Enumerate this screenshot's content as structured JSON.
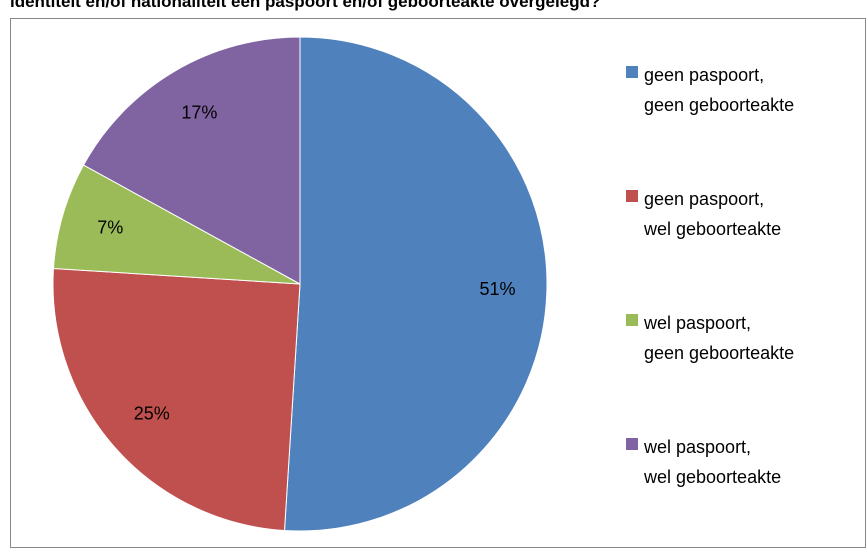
{
  "chart_data": {
    "type": "pie",
    "title": "identiteit en/of nationaliteit een paspoort en/of geboorteakte overgelegd?",
    "categories": [
      "geen paspoort,\ngeen geboorteakte",
      "geen paspoort,\nwel geboorteakte",
      "wel paspoort,\ngeen geboorteakte",
      "wel paspoort,\nwel geboorteakte"
    ],
    "values": [
      51,
      25,
      7,
      17
    ],
    "value_labels": [
      "51%",
      "25%",
      "7%",
      "17%"
    ],
    "colors": [
      "#4f81bd",
      "#c0504d",
      "#9bbb59",
      "#8064a2"
    ],
    "legend": "right"
  }
}
